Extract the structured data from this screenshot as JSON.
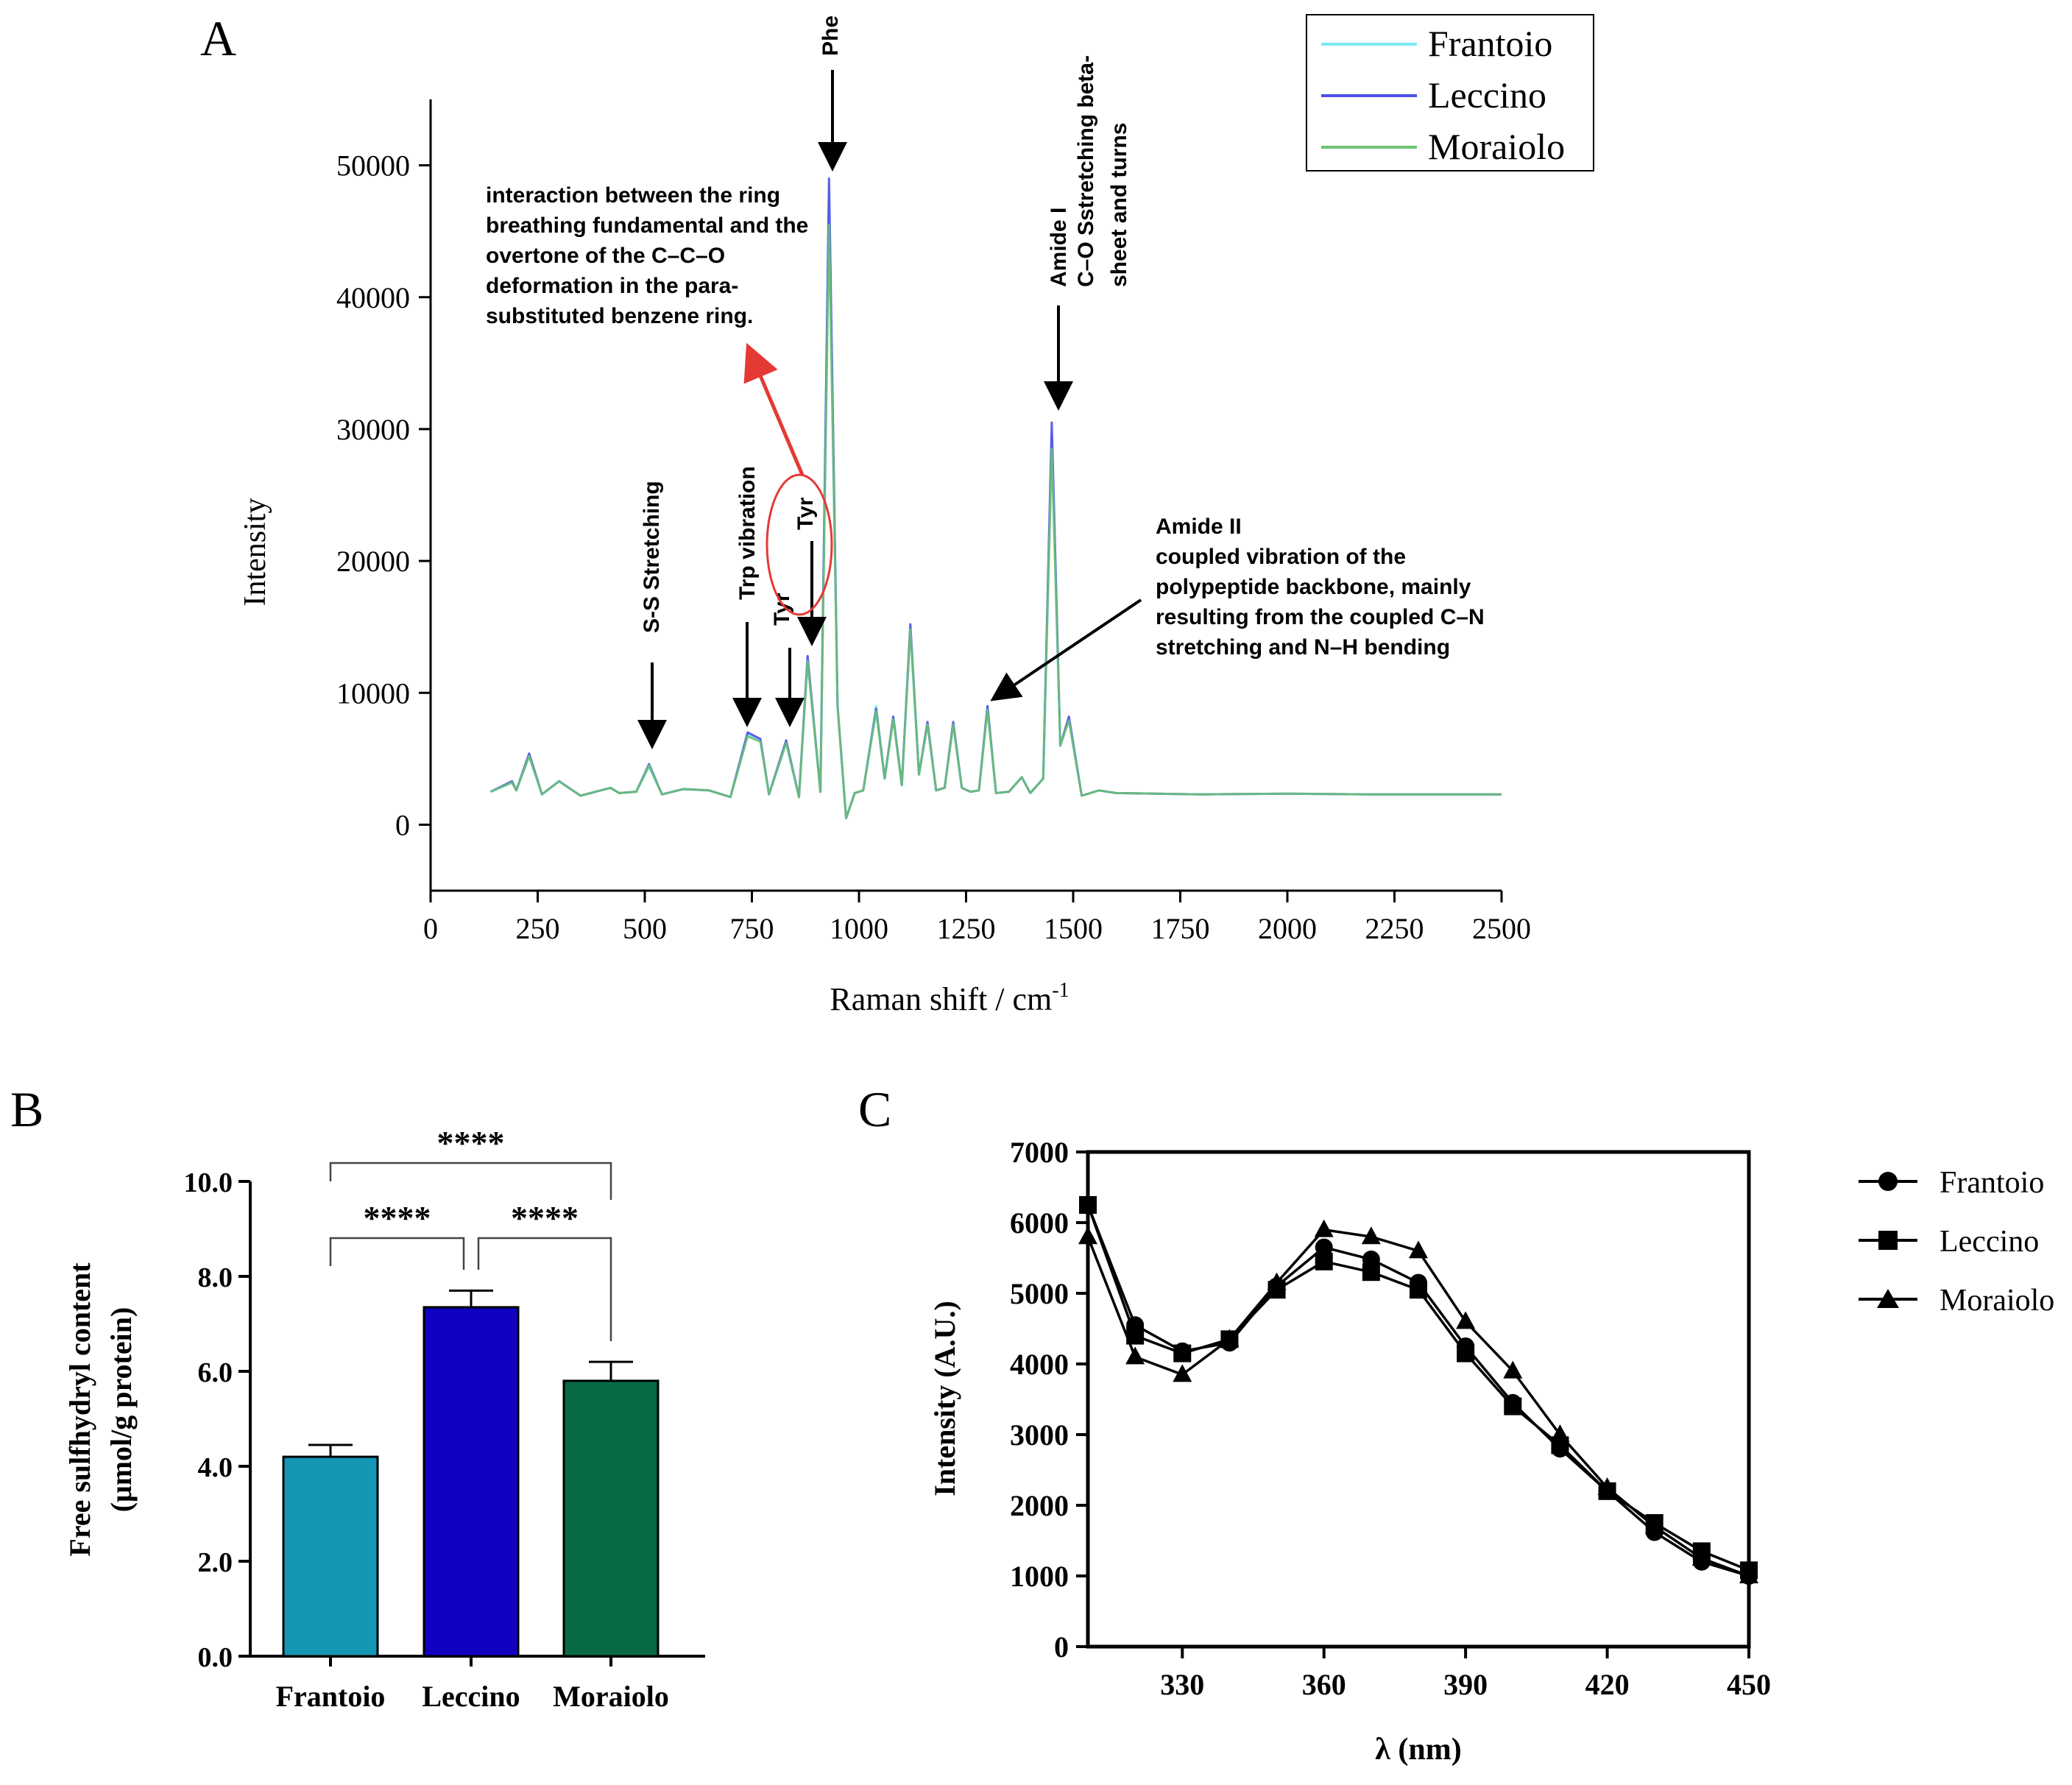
{
  "chart_data": [
    {
      "panel": "A",
      "type": "line",
      "title": "",
      "xlabel": "Raman shift / cm",
      "xlabel_sup": "-1",
      "ylabel": "Intensity",
      "xlim": [
        0,
        2500
      ],
      "ylim": [
        -5000,
        55000
      ],
      "xticks": [
        0,
        250,
        500,
        750,
        1000,
        1250,
        1500,
        1750,
        2000,
        2250,
        2500
      ],
      "yticks": [
        0,
        10000,
        20000,
        30000,
        40000,
        50000
      ],
      "legend": {
        "position": "top-right",
        "entries": [
          "Frantoio",
          "Leccino",
          "Moraiolo"
        ]
      },
      "series": [
        {
          "name": "Frantoio",
          "color": "#7ee8f5",
          "x": [
            140,
            190,
            200,
            230,
            260,
            300,
            350,
            420,
            440,
            480,
            510,
            540,
            590,
            650,
            700,
            740,
            770,
            790,
            830,
            860,
            880,
            910,
            930,
            950,
            970,
            990,
            1010,
            1040,
            1060,
            1080,
            1100,
            1120,
            1140,
            1160,
            1180,
            1200,
            1220,
            1240,
            1260,
            1280,
            1300,
            1320,
            1350,
            1380,
            1400,
            1430,
            1450,
            1470,
            1490,
            1520,
            1560,
            1600,
            1800,
            2000,
            2200,
            2500
          ],
          "values": [
            2500,
            3200,
            2600,
            5200,
            2300,
            3300,
            2200,
            2800,
            2400,
            2500,
            4400,
            2300,
            2700,
            2600,
            2100,
            6800,
            6400,
            2300,
            6200,
            2100,
            12500,
            2500,
            48000,
            9000,
            500,
            2400,
            2600,
            9000,
            3500,
            8200,
            3000,
            15000,
            3800,
            7600,
            2600,
            2800,
            7600,
            2800,
            2500,
            2600,
            9000,
            2400,
            2500,
            3600,
            2400,
            3500,
            29500,
            6000,
            8000,
            2200,
            2600,
            2400,
            2300,
            2350,
            2300,
            2300
          ]
        },
        {
          "name": "Leccino",
          "color": "#4b4fe8",
          "x": [
            140,
            190,
            200,
            230,
            260,
            300,
            350,
            420,
            440,
            480,
            510,
            540,
            590,
            650,
            700,
            740,
            770,
            790,
            830,
            860,
            880,
            910,
            930,
            950,
            970,
            990,
            1010,
            1040,
            1060,
            1080,
            1100,
            1120,
            1140,
            1160,
            1180,
            1200,
            1220,
            1240,
            1260,
            1280,
            1300,
            1320,
            1350,
            1380,
            1400,
            1430,
            1450,
            1470,
            1490,
            1520,
            1560,
            1600,
            1800,
            2000,
            2200,
            2500
          ],
          "values": [
            2500,
            3300,
            2600,
            5400,
            2300,
            3300,
            2200,
            2800,
            2400,
            2500,
            4600,
            2300,
            2700,
            2600,
            2100,
            7000,
            6500,
            2300,
            6400,
            2100,
            12800,
            2500,
            49000,
            9000,
            500,
            2400,
            2600,
            8800,
            3500,
            8200,
            3000,
            15200,
            3800,
            7800,
            2600,
            2800,
            7800,
            2800,
            2500,
            2600,
            9000,
            2400,
            2500,
            3600,
            2400,
            3500,
            30500,
            6000,
            8200,
            2200,
            2600,
            2400,
            2300,
            2350,
            2300,
            2300
          ]
        },
        {
          "name": "Moraiolo",
          "color": "#6cc276",
          "x": [
            140,
            190,
            200,
            230,
            260,
            300,
            350,
            420,
            440,
            480,
            510,
            540,
            590,
            650,
            700,
            740,
            770,
            790,
            830,
            860,
            880,
            910,
            930,
            950,
            970,
            990,
            1010,
            1040,
            1060,
            1080,
            1100,
            1120,
            1140,
            1160,
            1180,
            1200,
            1220,
            1240,
            1260,
            1280,
            1300,
            1320,
            1350,
            1380,
            1400,
            1430,
            1450,
            1470,
            1490,
            1520,
            1560,
            1600,
            1800,
            2000,
            2200,
            2500
          ],
          "values": [
            2500,
            3200,
            2600,
            5200,
            2300,
            3300,
            2200,
            2800,
            2400,
            2500,
            4500,
            2300,
            2700,
            2600,
            2100,
            6700,
            6300,
            2300,
            6200,
            2100,
            12400,
            2500,
            45500,
            9000,
            500,
            2400,
            2600,
            8600,
            3500,
            8000,
            3000,
            14800,
            3800,
            7600,
            2600,
            2800,
            7600,
            2800,
            2500,
            2600,
            8700,
            2400,
            2500,
            3600,
            2400,
            3500,
            28500,
            6000,
            7900,
            2200,
            2600,
            2400,
            2300,
            2350,
            2300,
            2300
          ]
        }
      ],
      "annotations": [
        {
          "text": "S-S Stretching",
          "x": 510
        },
        {
          "text": "Trp vibration",
          "x": 740
        },
        {
          "text": "Tyr",
          "x": 830
        },
        {
          "text": "Tyr",
          "x": 880
        },
        {
          "text": "Phe",
          "x": 930
        },
        {
          "text": "Amide I",
          "x": 1450
        },
        {
          "text": "C–O Sstretching beta-",
          "x": 1450
        },
        {
          "text": "sheet and turns",
          "x": 1450
        },
        {
          "text": "Amide II",
          "x": 1300
        },
        {
          "text": "coupled vibration of the",
          "x": 1300
        },
        {
          "text": "polypeptide backbone, mainly",
          "x": 1300
        },
        {
          "text": "resulting from the coupled C–N",
          "x": 1300
        },
        {
          "text": "stretching and N–H bending",
          "x": 1300
        },
        {
          "text": "interaction between the ring",
          "x": 880
        },
        {
          "text": "breathing fundamental and the",
          "x": 880
        },
        {
          "text": "overtone of the C–C–O",
          "x": 880
        },
        {
          "text": "deformation in the para-",
          "x": 880
        },
        {
          "text": "substituted benzene ring.",
          "x": 880
        }
      ]
    },
    {
      "panel": "B",
      "type": "bar",
      "title": "",
      "xlabel": "",
      "ylabel": "Free sulfhydryl content",
      "ylabel2": "(μmol/g protein)",
      "ylim": [
        0,
        10
      ],
      "yticks": [
        "0.0",
        "2.0",
        "4.0",
        "6.0",
        "8.0",
        "10.0"
      ],
      "categories": [
        "Frantoio",
        "Leccino",
        "Moraiolo"
      ],
      "values": [
        4.2,
        7.35,
        5.8
      ],
      "errors": [
        0.25,
        0.35,
        0.4
      ],
      "colors": [
        "#1496b4",
        "#1000c0",
        "#086a44"
      ],
      "significance": [
        {
          "pair": [
            "Frantoio",
            "Moraiolo"
          ],
          "label": "****"
        },
        {
          "pair": [
            "Frantoio",
            "Leccino"
          ],
          "label": "****"
        },
        {
          "pair": [
            "Leccino",
            "Moraiolo"
          ],
          "label": "****"
        }
      ]
    },
    {
      "panel": "C",
      "type": "line",
      "title": "",
      "xlabel": "λ (nm)",
      "ylabel": "Intensity  (A.U.)",
      "xlim": [
        310,
        450
      ],
      "ylim": [
        0,
        7000
      ],
      "xticks": [
        330,
        360,
        390,
        420,
        450
      ],
      "yticks": [
        0,
        1000,
        2000,
        3000,
        4000,
        5000,
        6000,
        7000
      ],
      "legend": {
        "position": "right",
        "entries": [
          "Frantoio",
          "Leccino",
          "Moraiolo"
        ]
      },
      "x": [
        310,
        320,
        330,
        340,
        350,
        360,
        370,
        380,
        390,
        400,
        410,
        420,
        430,
        440,
        450
      ],
      "series": [
        {
          "name": "Frantoio",
          "marker": "circle",
          "values": [
            6250,
            4550,
            4180,
            4300,
            5100,
            5650,
            5480,
            5150,
            4250,
            3450,
            2800,
            2200,
            1620,
            1200,
            1000
          ]
        },
        {
          "name": "Leccino",
          "marker": "square",
          "values": [
            6250,
            4400,
            4150,
            4350,
            5050,
            5450,
            5300,
            5050,
            4150,
            3400,
            2850,
            2200,
            1750,
            1350,
            1080
          ]
        },
        {
          "name": "Moraiolo",
          "marker": "triangle",
          "values": [
            5800,
            4100,
            3850,
            4350,
            5150,
            5900,
            5800,
            5600,
            4600,
            3900,
            3000,
            2250,
            1700,
            1250,
            1000
          ]
        }
      ]
    }
  ],
  "panel_labels": [
    "A",
    "B",
    "C"
  ]
}
